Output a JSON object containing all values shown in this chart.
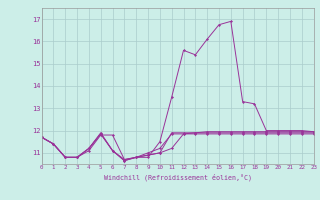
{
  "xlabel": "Windchill (Refroidissement éolien,°C)",
  "background_color": "#cceee8",
  "grid_color": "#aacccc",
  "line_color": "#993399",
  "xmin": 0,
  "xmax": 23,
  "ymin": 10.5,
  "ymax": 17.5,
  "yticks": [
    11,
    12,
    13,
    14,
    15,
    16,
    17
  ],
  "xticks": [
    0,
    1,
    2,
    3,
    4,
    5,
    6,
    7,
    8,
    9,
    10,
    11,
    12,
    13,
    14,
    15,
    16,
    17,
    18,
    19,
    20,
    21,
    22,
    23
  ],
  "series": [
    [
      11.7,
      11.4,
      10.8,
      10.8,
      11.1,
      11.8,
      11.8,
      10.7,
      10.8,
      10.9,
      11.0,
      11.9,
      11.9,
      11.9,
      11.95,
      11.95,
      11.95,
      11.95,
      11.95,
      11.95,
      11.95,
      11.95,
      11.95,
      11.95
    ],
    [
      11.7,
      11.4,
      10.8,
      10.8,
      11.2,
      11.9,
      11.1,
      10.7,
      10.8,
      10.9,
      11.0,
      11.2,
      11.85,
      11.9,
      11.9,
      11.9,
      11.9,
      11.9,
      11.9,
      11.9,
      11.9,
      11.9,
      11.9,
      11.9
    ],
    [
      11.7,
      11.4,
      10.8,
      10.8,
      11.2,
      11.85,
      11.1,
      10.65,
      10.8,
      11.0,
      11.2,
      11.85,
      11.85,
      11.85,
      11.85,
      11.85,
      11.85,
      11.85,
      11.85,
      11.85,
      11.85,
      11.85,
      11.85,
      11.85
    ],
    [
      11.7,
      11.4,
      10.8,
      10.8,
      11.2,
      11.85,
      11.1,
      10.65,
      10.8,
      10.8,
      11.5,
      13.5,
      15.6,
      15.4,
      16.1,
      16.75,
      16.9,
      13.3,
      13.2,
      12.0,
      12.0,
      12.0,
      12.0,
      11.95
    ]
  ]
}
